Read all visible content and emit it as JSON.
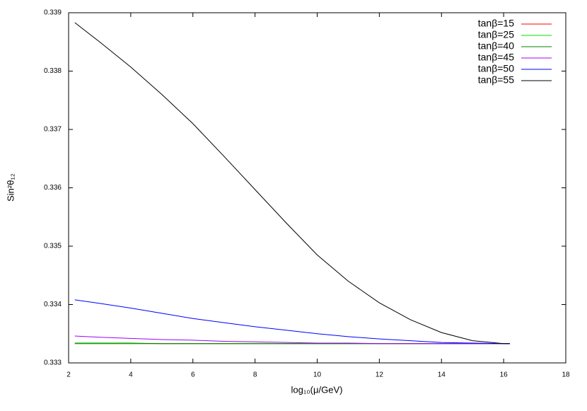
{
  "chart_data": {
    "type": "line",
    "xlabel": "log₁₀(μ/GeV)",
    "ylabel": "Sin²θ₁₂",
    "x": [
      2.2,
      3,
      4,
      5,
      6,
      7,
      8,
      9,
      10,
      11,
      12,
      13,
      14,
      15,
      16,
      16.2
    ],
    "series": [
      {
        "name": "tanβ=15",
        "color": "#ff0000",
        "values": [
          0.33333,
          0.33333,
          0.33333,
          0.33333,
          0.33333,
          0.33333,
          0.33333,
          0.33333,
          0.33333,
          0.33333,
          0.33333,
          0.33333,
          0.33333,
          0.33333,
          0.33333,
          0.33333
        ]
      },
      {
        "name": "tanβ=25",
        "color": "#00e000",
        "values": [
          0.33333,
          0.33333,
          0.33333,
          0.33333,
          0.33333,
          0.33333,
          0.33333,
          0.33333,
          0.33333,
          0.33333,
          0.33333,
          0.33333,
          0.33333,
          0.33333,
          0.33333,
          0.33333
        ]
      },
      {
        "name": "tanβ=40",
        "color": "#008000",
        "values": [
          0.33334,
          0.33334,
          0.33334,
          0.33333,
          0.33333,
          0.33333,
          0.33333,
          0.33333,
          0.33333,
          0.33333,
          0.33333,
          0.33333,
          0.33333,
          0.33333,
          0.33333,
          0.33333
        ]
      },
      {
        "name": "tanβ=45",
        "color": "#a000ff",
        "values": [
          0.33346,
          0.33344,
          0.33342,
          0.3334,
          0.33339,
          0.33337,
          0.33336,
          0.33335,
          0.33334,
          0.33334,
          0.33333,
          0.33333,
          0.33333,
          0.33333,
          0.33333,
          0.33333
        ]
      },
      {
        "name": "tanβ=50",
        "color": "#0000ff",
        "values": [
          0.33408,
          0.33402,
          0.33394,
          0.33385,
          0.33376,
          0.33369,
          0.33362,
          0.33356,
          0.3335,
          0.33345,
          0.33341,
          0.33338,
          0.33335,
          0.33334,
          0.33333,
          0.33333
        ]
      },
      {
        "name": "tanβ=55",
        "color": "#000000",
        "values": [
          0.33883,
          0.3385,
          0.33807,
          0.3376,
          0.3371,
          0.33654,
          0.33597,
          0.3354,
          0.33485,
          0.3344,
          0.33403,
          0.33374,
          0.33352,
          0.33338,
          0.33333,
          0.33333
        ]
      }
    ],
    "xlim": [
      2,
      18
    ],
    "xticks": [
      2,
      4,
      6,
      8,
      10,
      12,
      14,
      16,
      18
    ],
    "ylim": [
      0.333,
      0.339
    ],
    "yticks": [
      0.333,
      0.334,
      0.335,
      0.336,
      0.337,
      0.338,
      0.339
    ],
    "grid": false,
    "legend": "top-right"
  }
}
